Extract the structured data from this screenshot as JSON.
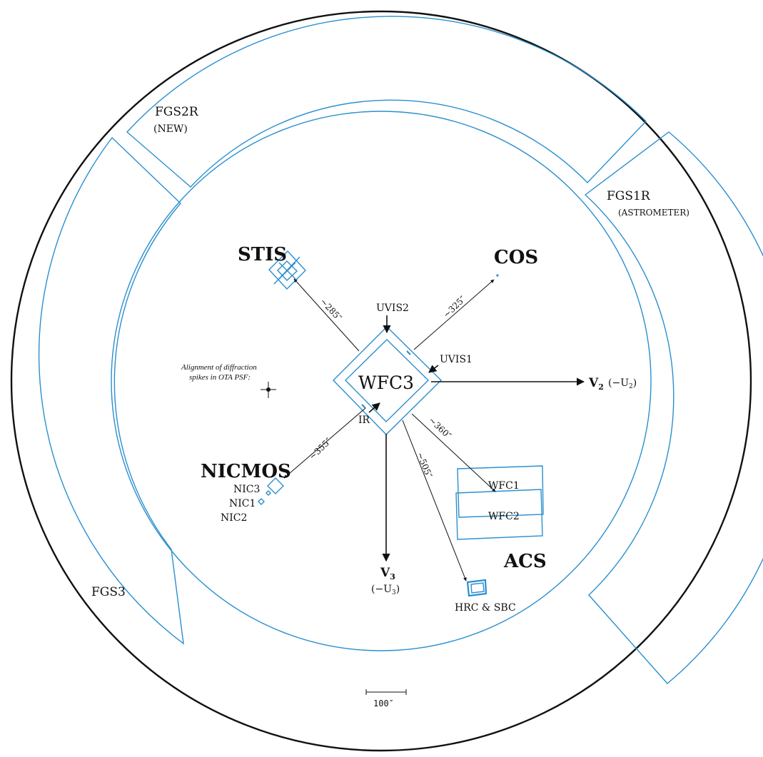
{
  "labels": {
    "fgs2r": "FGS2R",
    "fgs2r_note": "(NEW)",
    "fgs1r": "FGS1R",
    "fgs1r_note": "(ASTROMETER)",
    "fgs3": "FGS3",
    "stis": "STIS",
    "cos": "COS",
    "wfc3": "WFC3",
    "uvis1": "UVIS1",
    "uvis2": "UVIS2",
    "ir": "IR",
    "nicmos": "NICMOS",
    "nic1": "NIC1",
    "nic2": "NIC2",
    "nic3": "NIC3",
    "acs": "ACS",
    "wfc1": "WFC1",
    "wfc2": "WFC2",
    "hrc_sbc": "HRC & SBC",
    "v2": "V",
    "v2_sub": "2",
    "v2_alt": "(−U",
    "v2_alt_sub": "2",
    "v2_alt_close": ")",
    "v3": "V",
    "v3_sub": "3",
    "v3_alt": "(−U",
    "v3_alt_sub": "3",
    "v3_alt_close": ")",
    "psf_note_line1": "Alignment of diffraction",
    "psf_note_line2": "spikes in OTA PSF:",
    "scale": "100″"
  },
  "distances": {
    "stis": "~285″",
    "cos": "~325″",
    "nicmos": "~355″",
    "acs_wfc": "~360″",
    "acs_hrc": "~505″"
  },
  "colors": {
    "instrument_outline": "#2a8fcf",
    "ink": "#111111",
    "background": "#ffffff"
  }
}
